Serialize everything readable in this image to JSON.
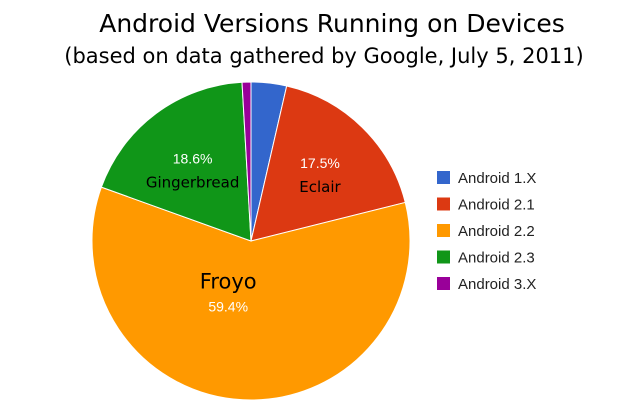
{
  "chart_data": {
    "type": "pie",
    "title": "Android Versions Running on Devices",
    "subtitle": "(based on data gathered by Google, July 5, 2011)",
    "legend_position": "right",
    "slices": [
      {
        "legend": "Android 1.X",
        "value": 3.6,
        "color": "#3366cc",
        "pct_label": "",
        "name_label": ""
      },
      {
        "legend": "Android 2.1",
        "value": 17.5,
        "color": "#dc3912",
        "pct_label": "17.5%",
        "name_label": "Eclair"
      },
      {
        "legend": "Android 2.2",
        "value": 59.4,
        "color": "#ff9900",
        "pct_label": "59.4%",
        "name_label": "Froyo"
      },
      {
        "legend": "Android 2.3",
        "value": 18.6,
        "color": "#109618",
        "pct_label": "18.6%",
        "name_label": "Gingerbread"
      },
      {
        "legend": "Android 3.X",
        "value": 0.9,
        "color": "#990099",
        "pct_label": "",
        "name_label": ""
      }
    ]
  }
}
